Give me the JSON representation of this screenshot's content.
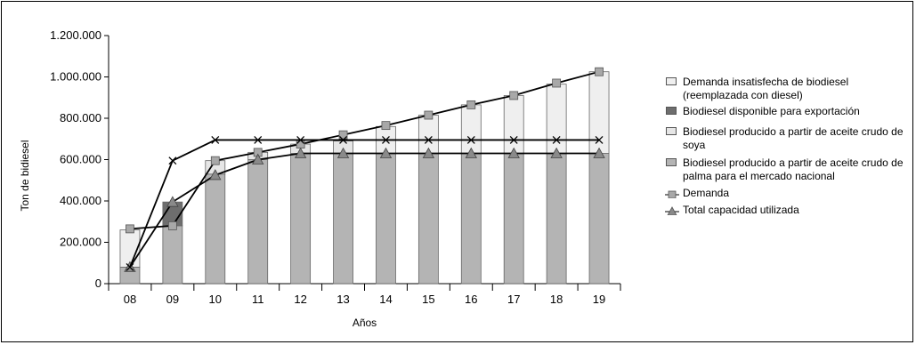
{
  "chart_data": {
    "type": "bar",
    "xlabel": "Años",
    "ylabel": "Ton de bidiesel",
    "ylim": [
      0,
      1200000
    ],
    "y_ticks": [
      "0",
      "200.000",
      "400.000",
      "600.000",
      "800.000",
      "1.000.000",
      "1.200.000"
    ],
    "y_tick_values": [
      0,
      200000,
      400000,
      600000,
      800000,
      1000000,
      1200000
    ],
    "categories": [
      "08",
      "09",
      "10",
      "11",
      "12",
      "13",
      "14",
      "15",
      "16",
      "17",
      "18",
      "19"
    ],
    "stacked_series": [
      {
        "name": "Biodiesel producido a partir de aceite crudo de palma para el mercado nacional",
        "color": "#b4b4b4",
        "values": [
          80000,
          280000,
          530000,
          600000,
          630000,
          630000,
          630000,
          630000,
          630000,
          630000,
          630000,
          630000
        ]
      },
      {
        "name": "Biodiesel producido a partir de aceite crudo de soya",
        "color": "#e6e6e6",
        "values": [
          0,
          0,
          65000,
          35000,
          45000,
          60000,
          0,
          0,
          0,
          0,
          0,
          0
        ]
      },
      {
        "name": "Biodiesel disponible para exportación",
        "color": "#6e6e6e",
        "values": [
          0,
          115000,
          0,
          0,
          0,
          0,
          0,
          0,
          0,
          0,
          0,
          0
        ]
      },
      {
        "name": "Demanda insatisfecha de biodiesel (reemplazada con diesel)",
        "color": "#efefef",
        "values": [
          180000,
          0,
          0,
          0,
          0,
          0,
          130000,
          185000,
          235000,
          280000,
          335000,
          395000
        ]
      }
    ],
    "line_series": [
      {
        "name": "Demanda",
        "marker": "square",
        "values": [
          265000,
          280000,
          595000,
          635000,
          675000,
          720000,
          765000,
          815000,
          865000,
          910000,
          970000,
          1025000
        ]
      },
      {
        "name": "Total capacidad utilizada",
        "marker": "triangle",
        "values": [
          80000,
          395000,
          525000,
          600000,
          630000,
          630000,
          630000,
          630000,
          630000,
          630000,
          630000,
          630000
        ]
      },
      {
        "name": "",
        "marker": "x",
        "values": [
          80000,
          595000,
          695000,
          695000,
          695000,
          695000,
          695000,
          695000,
          695000,
          695000,
          695000,
          695000
        ]
      }
    ]
  },
  "legend": {
    "items": [
      {
        "label": "Demanda insatisfecha de biodiesel (reemplazada con diesel)",
        "kind": "box",
        "color": "#efefef"
      },
      {
        "label": "Biodiesel disponible para exportación",
        "kind": "box",
        "color": "#6e6e6e"
      },
      {
        "label": "Biodiesel producido a partir de aceite crudo de soya",
        "kind": "box",
        "color": "#e6e6e6"
      },
      {
        "label": "Biodiesel producido a partir de aceite crudo de palma para el mercado nacional",
        "kind": "box",
        "color": "#b4b4b4"
      },
      {
        "label": "Demanda",
        "kind": "square-line",
        "color": "#a8a8a8"
      },
      {
        "label": "Total capacidad utilizada",
        "kind": "triangle-line",
        "color": "#8a8a8a"
      }
    ]
  }
}
